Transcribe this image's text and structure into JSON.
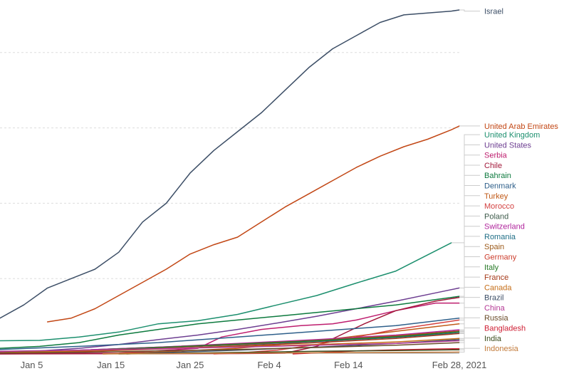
{
  "chart_data": {
    "type": "line",
    "title": "",
    "xlabel": "",
    "ylabel": "",
    "x_ticks": [
      "Jan 5",
      "Jan 15",
      "Jan 25",
      "Feb 4",
      "Feb 14",
      "Feb 28, 2021"
    ],
    "x_tick_days": [
      4,
      14,
      24,
      34,
      44,
      58
    ],
    "x_start": "2021-01-01",
    "x_end": "2021-02-28",
    "ylim": [
      0,
      93
    ],
    "grid_y": [
      20,
      40,
      60,
      80
    ],
    "grid": true,
    "legend": "right-end-labels",
    "series": [
      {
        "name": "Israel",
        "color": "#3c4e66",
        "label_y": 91,
        "x": [
          0,
          3,
          6,
          9,
          12,
          15,
          18,
          21,
          24,
          27,
          30,
          33,
          36,
          39,
          42,
          45,
          48,
          51,
          54,
          57,
          58
        ],
        "y": [
          9.5,
          13,
          17.5,
          20,
          22.5,
          27,
          35,
          40,
          48,
          54,
          59,
          64,
          70,
          76,
          81,
          84.5,
          88,
          90,
          90.5,
          91,
          91.3
        ]
      },
      {
        "name": "United Arab Emirates",
        "color": "#c24715",
        "label_y": 60.5,
        "x": [
          6,
          9,
          12,
          15,
          18,
          21,
          24,
          27,
          30,
          33,
          36,
          39,
          42,
          45,
          48,
          51,
          54,
          57,
          58
        ],
        "y": [
          8.5,
          9.5,
          12,
          15.5,
          19,
          22.5,
          26.5,
          29,
          31,
          35,
          39,
          42.5,
          46,
          49.5,
          52.5,
          55,
          57,
          59.5,
          60.5
        ]
      },
      {
        "name": "United Kingdom",
        "color": "#1c8f6e",
        "label_y": 58.2,
        "x": [
          0,
          5,
          10,
          15,
          20,
          25,
          30,
          35,
          40,
          45,
          50,
          57
        ],
        "y": [
          3.5,
          3.6,
          4.5,
          5.8,
          8.0,
          8.8,
          10.5,
          13,
          15.5,
          18.8,
          22,
          29.5
        ]
      },
      {
        "name": "United States",
        "color": "#6d3e91",
        "label_y": 55.5,
        "x": [
          0,
          5,
          10,
          15,
          20,
          25,
          30,
          35,
          40,
          45,
          50,
          55,
          58
        ],
        "y": [
          0.5,
          0.8,
          1.5,
          2.5,
          3.8,
          5.0,
          6.5,
          8.2,
          10.0,
          12,
          14,
          16.2,
          17.5
        ]
      },
      {
        "name": "Serbia",
        "color": "#be1d6e",
        "label_y": 52.8,
        "x": [
          0,
          15,
          25,
          28,
          33,
          38,
          42,
          45,
          50,
          55,
          58
        ],
        "y": [
          0,
          0.2,
          1.5,
          4.5,
          6.5,
          7.5,
          8.0,
          9.0,
          11.5,
          13.5,
          13.5
        ]
      },
      {
        "name": "Chile",
        "color": "#a2183a",
        "label_y": 50.1,
        "x": [
          0,
          30,
          36,
          40,
          43,
          46,
          50,
          55,
          58
        ],
        "y": [
          0,
          0.1,
          0.2,
          2.0,
          5.0,
          8.0,
          11.5,
          14.0,
          15.0
        ]
      },
      {
        "name": "Bahrain",
        "color": "#0d7a3e",
        "label_y": 47.4,
        "x": [
          0,
          5,
          10,
          15,
          20,
          25,
          30,
          35,
          40,
          45,
          50,
          58
        ],
        "y": [
          1.5,
          2.0,
          3.0,
          5.0,
          6.5,
          8.0,
          9.0,
          10.0,
          11.0,
          12.0,
          13.0,
          15.3
        ]
      },
      {
        "name": "Denmark",
        "color": "#2e5f8a",
        "label_y": 44.7,
        "x": [
          0,
          10,
          20,
          30,
          40,
          50,
          58
        ],
        "y": [
          1.2,
          2.0,
          3.0,
          4.5,
          6.0,
          7.5,
          9.5
        ]
      },
      {
        "name": "Turkey",
        "color": "#c05917",
        "label_y": 42.0,
        "x": [
          13,
          20,
          30,
          40,
          48,
          58
        ],
        "y": [
          0,
          0.5,
          1.5,
          3.5,
          5.5,
          8.0
        ]
      },
      {
        "name": "Morocco",
        "color": "#d34140",
        "label_y": 39.3,
        "x": [
          27,
          30,
          35,
          40,
          45,
          50,
          58
        ],
        "y": [
          0,
          0.2,
          1.0,
          2.5,
          4.5,
          6.5,
          9.0
        ]
      },
      {
        "name": "Poland",
        "color": "#3d5a4a",
        "label_y": 36.6,
        "x": [
          0,
          10,
          20,
          30,
          40,
          50,
          58
        ],
        "y": [
          0.5,
          1.0,
          1.8,
          2.6,
          3.5,
          4.6,
          6.0
        ]
      },
      {
        "name": "Switzerland",
        "color": "#b0249c",
        "label_y": 33.9,
        "x": [
          0,
          10,
          20,
          30,
          40,
          50,
          58
        ],
        "y": [
          0.4,
          1.0,
          1.8,
          2.8,
          3.8,
          5.0,
          6.4
        ]
      },
      {
        "name": "Romania",
        "color": "#1f6e86",
        "label_y": 31.2,
        "x": [
          0,
          10,
          20,
          30,
          40,
          50,
          58
        ],
        "y": [
          0.3,
          0.9,
          1.6,
          2.4,
          3.3,
          4.4,
          5.6
        ]
      },
      {
        "name": "Spain",
        "color": "#9c5a1a",
        "label_y": 28.5,
        "x": [
          0,
          10,
          20,
          30,
          40,
          50,
          58
        ],
        "y": [
          0.3,
          0.9,
          1.7,
          2.6,
          3.6,
          4.8,
          6.1
        ]
      },
      {
        "name": "Germany",
        "color": "#cc3d2c",
        "label_y": 25.8,
        "x": [
          0,
          10,
          20,
          30,
          40,
          50,
          58
        ],
        "y": [
          0.3,
          0.8,
          1.6,
          2.5,
          3.5,
          4.7,
          6.0
        ]
      },
      {
        "name": "Italy",
        "color": "#277a27",
        "label_y": 23.1,
        "x": [
          0,
          10,
          20,
          30,
          40,
          50,
          58
        ],
        "y": [
          0.3,
          0.9,
          1.7,
          2.6,
          3.5,
          4.6,
          5.9
        ]
      },
      {
        "name": "France",
        "color": "#a53a1a",
        "label_y": 20.4,
        "x": [
          0,
          10,
          20,
          30,
          40,
          50,
          58
        ],
        "y": [
          0.2,
          0.6,
          1.3,
          2.1,
          3.0,
          4.1,
          5.4
        ]
      },
      {
        "name": "Canada",
        "color": "#c56e18",
        "label_y": 17.7,
        "x": [
          0,
          10,
          20,
          30,
          40,
          50,
          58
        ],
        "y": [
          0.3,
          0.8,
          1.4,
          1.9,
          2.5,
          3.2,
          4.1
        ]
      },
      {
        "name": "Brazil",
        "color": "#3c4e66",
        "label_y": 15.0,
        "x": [
          16,
          20,
          30,
          40,
          50,
          58
        ],
        "y": [
          0,
          0.3,
          1.0,
          1.8,
          2.8,
          3.8
        ]
      },
      {
        "name": "China",
        "color": "#b43894",
        "label_y": 12.3,
        "x": [
          0,
          10,
          20,
          30,
          40,
          50,
          58
        ],
        "y": [
          0.7,
          1.0,
          1.4,
          1.8,
          2.3,
          2.8,
          3.5
        ]
      },
      {
        "name": "Russia",
        "color": "#6b4d2a",
        "label_y": 9.6,
        "x": [
          0,
          10,
          20,
          30,
          40,
          50,
          58
        ],
        "y": [
          0.2,
          0.4,
          0.8,
          1.2,
          1.7,
          2.3,
          3.0
        ]
      },
      {
        "name": "Bangladesh",
        "color": "#cf2035",
        "label_y": 6.9,
        "x": [
          37,
          40,
          45,
          50,
          55,
          58
        ],
        "y": [
          0,
          0.3,
          0.8,
          1.1,
          1.3,
          1.4
        ]
      },
      {
        "name": "India",
        "color": "#3a4a1a",
        "label_y": 4.2,
        "x": [
          15,
          20,
          30,
          40,
          50,
          58
        ],
        "y": [
          0,
          0.1,
          0.4,
          0.7,
          0.9,
          1.1
        ]
      },
      {
        "name": "Indonesia",
        "color": "#c27a3a",
        "label_y": 1.5,
        "x": [
          13,
          20,
          30,
          40,
          50,
          58
        ],
        "y": [
          0,
          0.1,
          0.2,
          0.3,
          0.4,
          0.5
        ]
      }
    ]
  }
}
